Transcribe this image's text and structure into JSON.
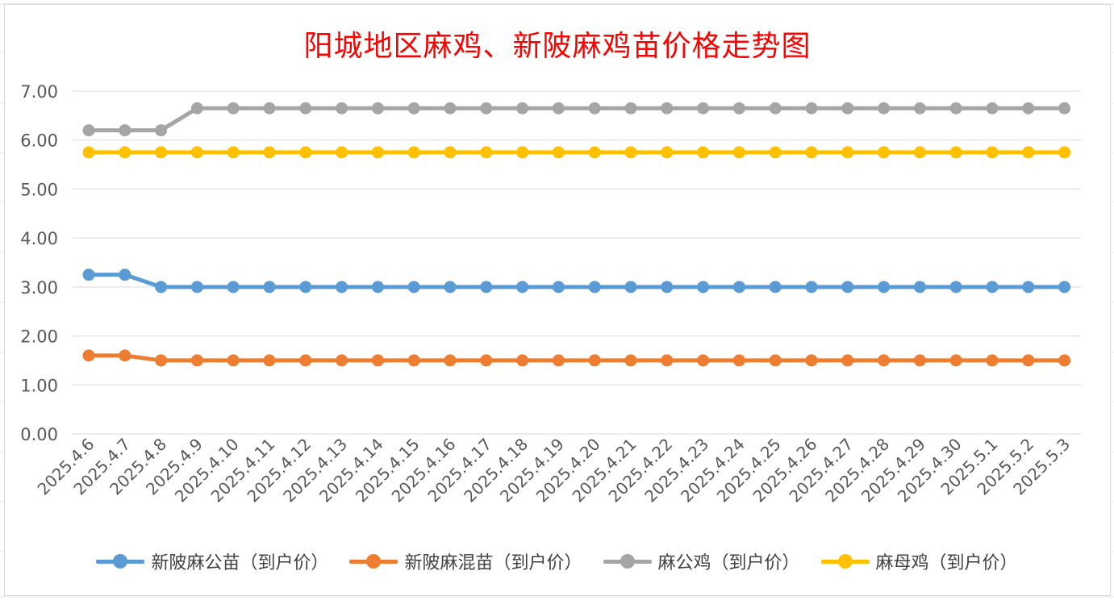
{
  "chart_data": {
    "type": "line",
    "title": "阳城地区麻鸡、新陂麻鸡苗价格走势图",
    "categories": [
      "2025.4.6",
      "2025.4.7",
      "2025.4.8",
      "2025.4.9",
      "2025.4.10",
      "2025.4.11",
      "2025.4.12",
      "2025.4.13",
      "2025.4.14",
      "2025.4.15",
      "2025.4.16",
      "2025.4.17",
      "2025.4.18",
      "2025.4.19",
      "2025.4.20",
      "2025.4.21",
      "2025.4.22",
      "2025.4.23",
      "2025.4.24",
      "2025.4.25",
      "2025.4.26",
      "2025.4.27",
      "2025.4.28",
      "2025.4.29",
      "2025.4.30",
      "2025.5.1",
      "2025.5.2",
      "2025.5.3"
    ],
    "ylim": [
      0,
      7
    ],
    "yticks": [
      "0.00",
      "1.00",
      "2.00",
      "3.00",
      "4.00",
      "5.00",
      "6.00",
      "7.00"
    ],
    "grid": true,
    "legend_position": "bottom",
    "series": [
      {
        "name": "新陂麻公苗（到户价）",
        "color": "#5b9bd5",
        "values": [
          3.25,
          3.25,
          3.0,
          3.0,
          3.0,
          3.0,
          3.0,
          3.0,
          3.0,
          3.0,
          3.0,
          3.0,
          3.0,
          3.0,
          3.0,
          3.0,
          3.0,
          3.0,
          3.0,
          3.0,
          3.0,
          3.0,
          3.0,
          3.0,
          3.0,
          3.0,
          3.0,
          3.0
        ]
      },
      {
        "name": "新陂麻混苗（到户价）",
        "color": "#ed7d31",
        "values": [
          1.6,
          1.6,
          1.5,
          1.5,
          1.5,
          1.5,
          1.5,
          1.5,
          1.5,
          1.5,
          1.5,
          1.5,
          1.5,
          1.5,
          1.5,
          1.5,
          1.5,
          1.5,
          1.5,
          1.5,
          1.5,
          1.5,
          1.5,
          1.5,
          1.5,
          1.5,
          1.5,
          1.5
        ]
      },
      {
        "name": "麻公鸡（到户价）",
        "color": "#a5a5a5",
        "values": [
          6.2,
          6.2,
          6.2,
          6.65,
          6.65,
          6.65,
          6.65,
          6.65,
          6.65,
          6.65,
          6.65,
          6.65,
          6.65,
          6.65,
          6.65,
          6.65,
          6.65,
          6.65,
          6.65,
          6.65,
          6.65,
          6.65,
          6.65,
          6.65,
          6.65,
          6.65,
          6.65,
          6.65
        ]
      },
      {
        "name": "麻母鸡（到户价）",
        "color": "#ffc000",
        "values": [
          5.75,
          5.75,
          5.75,
          5.75,
          5.75,
          5.75,
          5.75,
          5.75,
          5.75,
          5.75,
          5.75,
          5.75,
          5.75,
          5.75,
          5.75,
          5.75,
          5.75,
          5.75,
          5.75,
          5.75,
          5.75,
          5.75,
          5.75,
          5.75,
          5.75,
          5.75,
          5.75,
          5.75
        ]
      }
    ]
  }
}
